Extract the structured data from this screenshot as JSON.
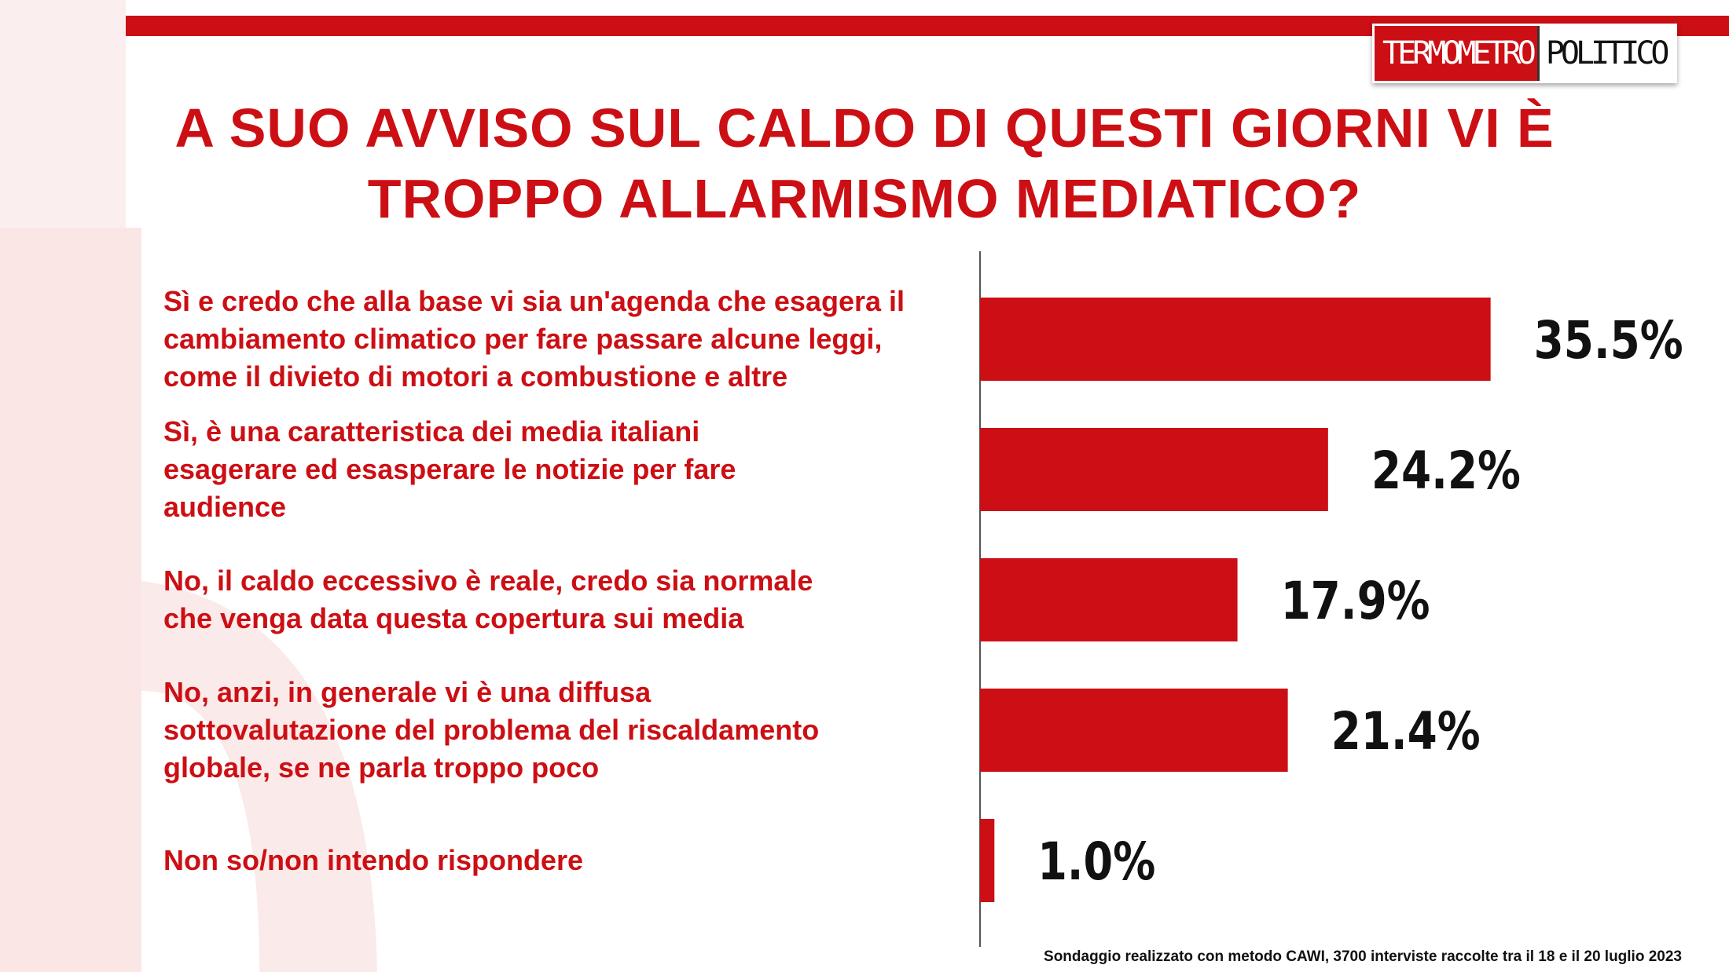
{
  "brand": {
    "part1": "TERMOMETRO",
    "part2": "POLITICO",
    "accent": "#cc0f14"
  },
  "title": "A SUO AVVISO SUL CALDO DI QUESTI GIORNI VI È TROPPO ALLARMISMO MEDIATICO?",
  "footnote": "Sondaggio realizzato con metodo CAWI, 3700 interviste raccolte tra il 18 e il 20 luglio 2023",
  "chart_data": {
    "type": "bar",
    "orientation": "horizontal",
    "categories": [
      [
        "Sì e credo che alla base vi sia un'agenda che esagera il",
        "cambiamento climatico per fare passare alcune leggi,",
        "come il divieto di motori a combustione e altre"
      ],
      [
        "Sì, è una caratteristica dei media italiani",
        "esagerare ed esasperare le notizie per fare",
        "audience"
      ],
      [
        "No, il caldo eccessivo è reale, credo sia normale",
        "che venga data questa copertura sui media"
      ],
      [
        "No, anzi, in generale vi è una diffusa",
        "sottovalutazione del problema del riscaldamento",
        "globale, se ne parla troppo poco"
      ],
      [
        "Non so/non intendo rispondere"
      ]
    ],
    "values": [
      35.5,
      24.2,
      17.9,
      21.4,
      1.0
    ],
    "value_labels": [
      "35.5%",
      "24.2%",
      "17.9%",
      "21.4%",
      "1.0%"
    ],
    "bar_color": "#cc0f14",
    "grid": false,
    "legend": false
  }
}
